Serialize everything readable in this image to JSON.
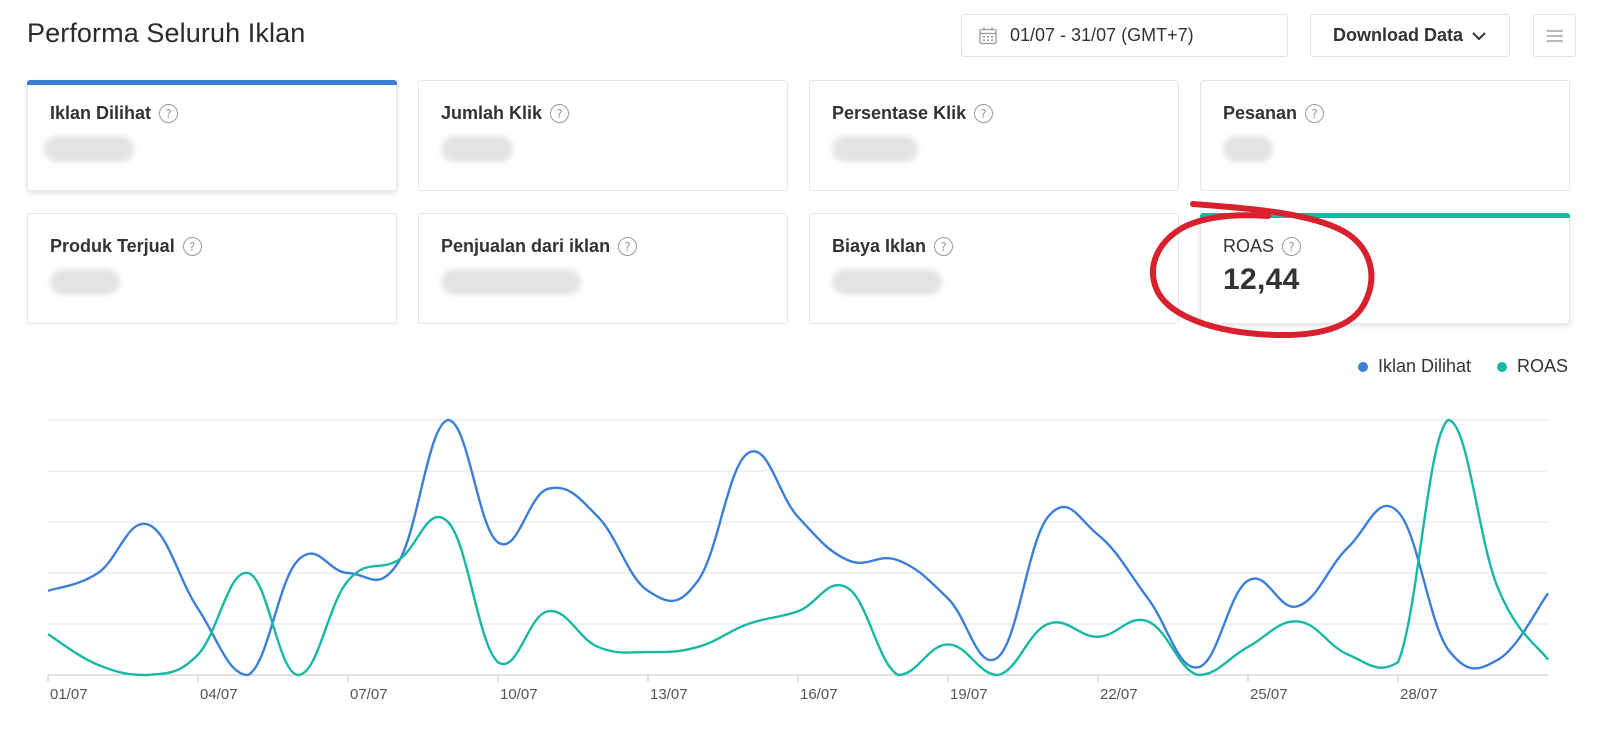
{
  "header": {
    "title": "Performa Seluruh Iklan",
    "date_range": "01/07 - 31/07 (GMT+7)",
    "download_label": "Download Data",
    "icons": {
      "date": "calendar-icon",
      "download": "chevron-down-icon",
      "menu": "hamburger-menu-icon"
    }
  },
  "cards": [
    {
      "label": "Iklan Dilihat",
      "value": "",
      "selected": "blue"
    },
    {
      "label": "Jumlah Klik",
      "value": ""
    },
    {
      "label": "Persentase Klik",
      "value": ""
    },
    {
      "label": "Pesanan",
      "value": ""
    },
    {
      "label": "Produk Terjual",
      "value": ""
    },
    {
      "label": "Penjualan dari iklan",
      "value": ""
    },
    {
      "label": "Biaya Iklan",
      "value": ""
    },
    {
      "label": "ROAS",
      "value": "12,44",
      "selected": "teal"
    }
  ],
  "help_glyph": "?",
  "colors": {
    "iklan_dilihat": "#3c7ed8",
    "roas": "#17b8a4",
    "annotation": "#d8202e"
  },
  "chart_data": {
    "type": "line",
    "x": [
      "01/07",
      "02/07",
      "03/07",
      "04/07",
      "05/07",
      "06/07",
      "07/07",
      "08/07",
      "09/07",
      "10/07",
      "11/07",
      "12/07",
      "13/07",
      "14/07",
      "15/07",
      "16/07",
      "17/07",
      "18/07",
      "19/07",
      "20/07",
      "21/07",
      "22/07",
      "23/07",
      "24/07",
      "25/07",
      "26/07",
      "27/07",
      "28/07",
      "29/07",
      "30/07",
      "31/07"
    ],
    "tick_labels": [
      "01/07",
      "04/07",
      "07/07",
      "10/07",
      "13/07",
      "16/07",
      "19/07",
      "22/07",
      "25/07",
      "28/07"
    ],
    "normalized_scale": true,
    "series": [
      {
        "name": "Iklan Dilihat",
        "color": "#3c7ed8",
        "values": [
          0.33,
          0.4,
          0.59,
          0.26,
          0.0,
          0.45,
          0.4,
          0.44,
          1.0,
          0.52,
          0.73,
          0.62,
          0.33,
          0.37,
          0.87,
          0.62,
          0.45,
          0.45,
          0.3,
          0.07,
          0.62,
          0.55,
          0.3,
          0.03,
          0.37,
          0.27,
          0.5,
          0.64,
          0.1,
          0.06,
          0.32
        ]
      },
      {
        "name": "ROAS",
        "color": "#17b8a4",
        "values": [
          0.16,
          0.04,
          0.0,
          0.08,
          0.4,
          0.0,
          0.37,
          0.45,
          0.6,
          0.05,
          0.25,
          0.11,
          0.09,
          0.11,
          0.2,
          0.25,
          0.34,
          0.0,
          0.12,
          0.0,
          0.2,
          0.15,
          0.21,
          0.0,
          0.11,
          0.21,
          0.08,
          0.05,
          1.0,
          0.34,
          0.06
        ]
      }
    ],
    "legend": "top-right",
    "grid": true
  }
}
